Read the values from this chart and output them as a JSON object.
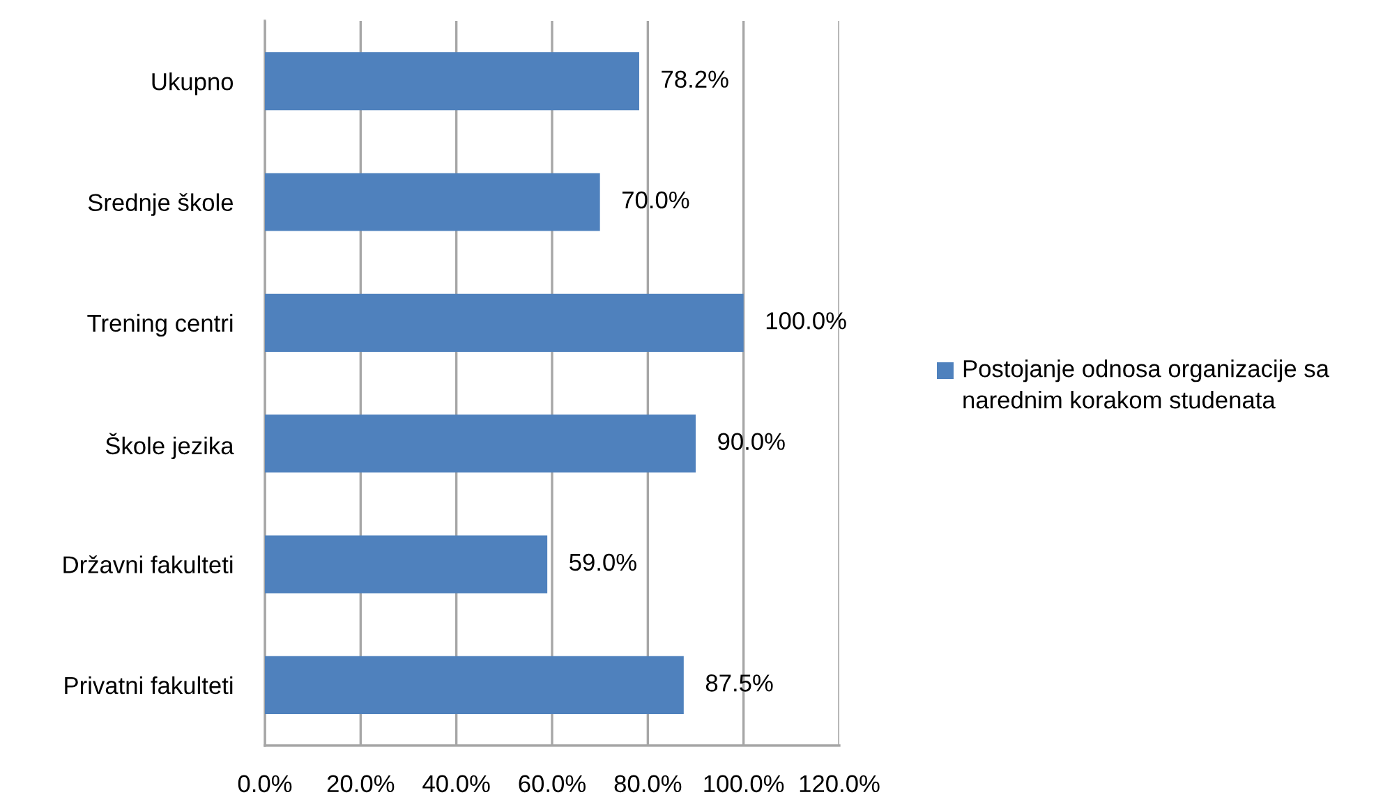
{
  "chart_data": {
    "type": "bar",
    "orientation": "horizontal",
    "categories": [
      "Ukupno",
      "Srednje škole",
      "Trening centri",
      "Škole jezika",
      "Državni fakulteti",
      "Privatni fakulteti"
    ],
    "series": [
      {
        "name": "Postojanje odnosa organizacije sa narednim korakom studenata",
        "color": "#4f81bd",
        "values": [
          78.2,
          70.0,
          100.0,
          90.0,
          59.0,
          87.5
        ],
        "value_labels": [
          "78.2%",
          "70.0%",
          "100.0%",
          "90.0%",
          "59.0%",
          "87.5%"
        ]
      }
    ],
    "xlim": [
      0,
      120
    ],
    "xticks": [
      {
        "value": 0,
        "label": "0.0%"
      },
      {
        "value": 20,
        "label": "20.0%"
      },
      {
        "value": 40,
        "label": "40.0%"
      },
      {
        "value": 60,
        "label": "60.0%"
      },
      {
        "value": 80,
        "label": "80.0%"
      },
      {
        "value": 100,
        "label": "100.0%"
      },
      {
        "value": 120,
        "label": "120.0%"
      }
    ],
    "grid": "x",
    "legend": "right"
  }
}
